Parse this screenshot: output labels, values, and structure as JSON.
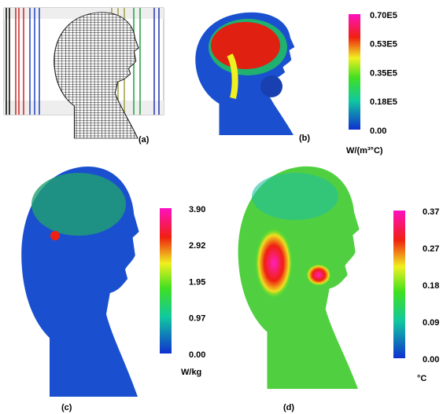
{
  "panels": [
    {
      "label": "(a)"
    },
    {
      "label": "(b)",
      "colorbar": {
        "ticks": [
          "0.70E5",
          "0.53E5",
          "0.35E5",
          "0.18E5",
          "0.00"
        ],
        "unit": "W/(m³°C)"
      }
    },
    {
      "label": "(c)",
      "colorbar": {
        "ticks": [
          "3.90",
          "2.92",
          "1.95",
          "0.97",
          "0.00"
        ],
        "unit": "W/kg"
      }
    },
    {
      "label": "(d)",
      "colorbar": {
        "ticks": [
          "0.37",
          "0.27",
          "0.18",
          "0.09",
          "0.00"
        ],
        "unit": "°C"
      }
    }
  ]
}
